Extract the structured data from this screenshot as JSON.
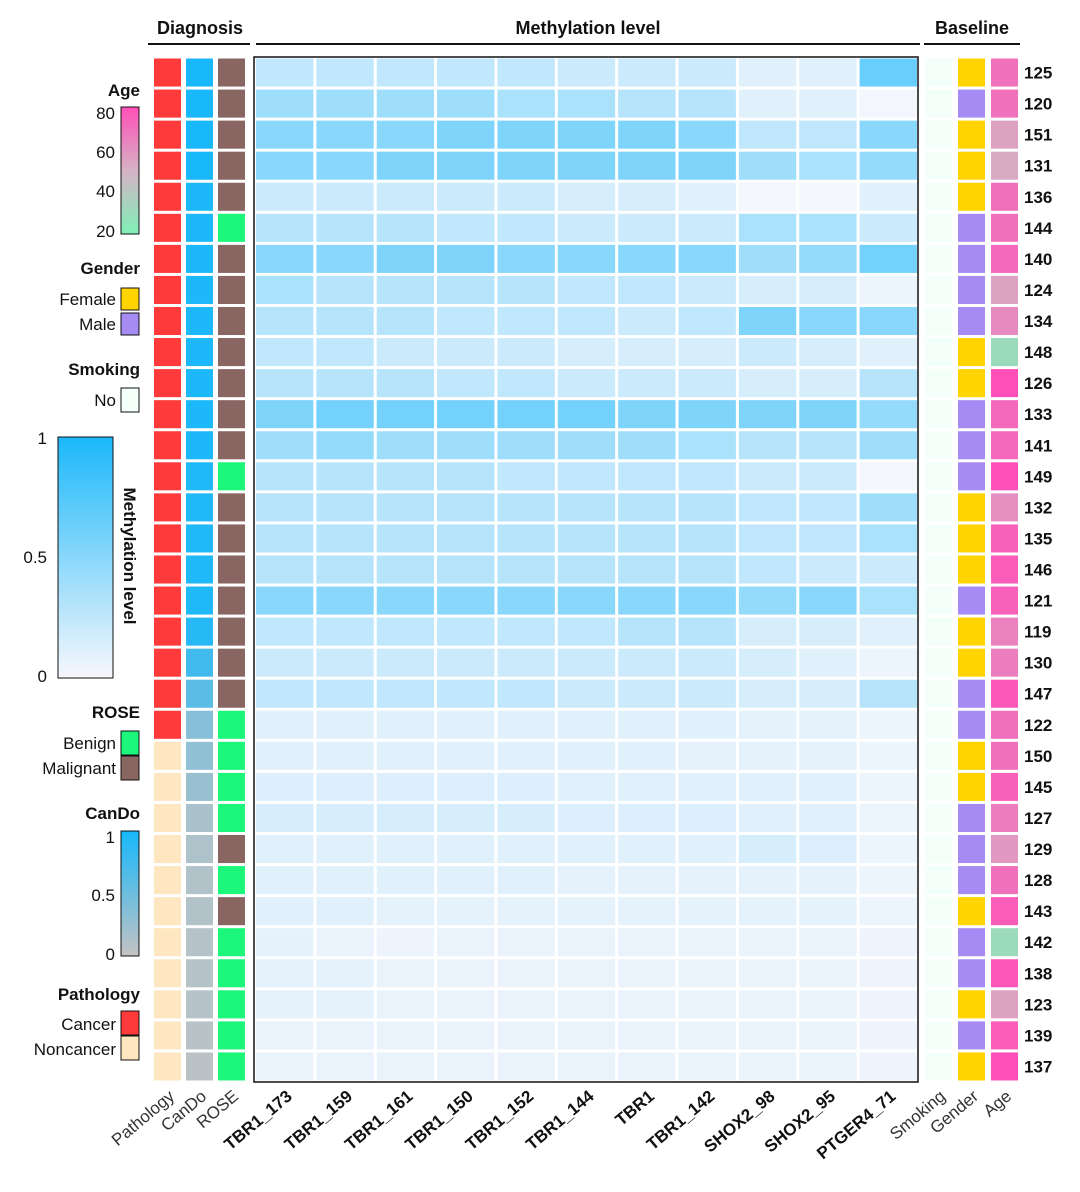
{
  "headers": {
    "diagnosis": "Diagnosis",
    "methylation": "Methylation level",
    "baseline": "Baseline"
  },
  "legend": {
    "age": {
      "title": "Age",
      "ticks": [
        "80",
        "60",
        "40",
        "20"
      ],
      "colors": [
        "#ff4fb8",
        "#d6b2c4",
        "#7ef0b8"
      ]
    },
    "gender": {
      "title": "Gender",
      "items": [
        {
          "label": "Female",
          "color": "#ffd400"
        },
        {
          "label": "Male",
          "color": "#a78bf5"
        }
      ]
    },
    "smoking": {
      "title": "Smoking",
      "items": [
        {
          "label": "No",
          "color": "#f3fff9"
        }
      ]
    },
    "methylation": {
      "title": "Methylation level",
      "ticks": [
        "1",
        "0.5",
        "0"
      ],
      "colors": [
        "#1bb8fa",
        "#f7f7fc"
      ]
    },
    "rose": {
      "title": "ROSE",
      "items": [
        {
          "label": "Benign",
          "color": "#1cf77b"
        },
        {
          "label": "Malignant",
          "color": "#8a6663"
        }
      ]
    },
    "cando": {
      "title": "CanDo",
      "ticks": [
        "1",
        "0.5",
        "0"
      ],
      "colors": [
        "#16b8fb",
        "#c3c3c3"
      ]
    },
    "pathology": {
      "title": "Pathology",
      "items": [
        {
          "label": "Cancer",
          "color": "#ff3a3a"
        },
        {
          "label": "Noncancer",
          "color": "#fee7c0"
        }
      ]
    }
  },
  "chart_data": {
    "type": "heatmap",
    "diagnosis_columns": [
      "Pathology",
      "CanDo",
      "ROSE"
    ],
    "marker_columns": [
      "TBR1_173",
      "TBR1_159",
      "TBR1_161",
      "TBR1_150",
      "TBR1_152",
      "TBR1_144",
      "TBR1",
      "TBR1_142",
      "SHOX2_98",
      "SHOX2_95",
      "PTGER4_71"
    ],
    "baseline_columns": [
      "Age",
      "Gender",
      "Smoking"
    ],
    "rows": [
      "125",
      "120",
      "151",
      "131",
      "136",
      "144",
      "140",
      "124",
      "134",
      "148",
      "126",
      "133",
      "141",
      "149",
      "132",
      "135",
      "146",
      "121",
      "119",
      "130",
      "147",
      "122",
      "150",
      "145",
      "127",
      "129",
      "128",
      "143",
      "142",
      "138",
      "123",
      "139",
      "137"
    ],
    "pathology": [
      "Cancer",
      "Cancer",
      "Cancer",
      "Cancer",
      "Cancer",
      "Cancer",
      "Cancer",
      "Cancer",
      "Cancer",
      "Cancer",
      "Cancer",
      "Cancer",
      "Cancer",
      "Cancer",
      "Cancer",
      "Cancer",
      "Cancer",
      "Cancer",
      "Cancer",
      "Cancer",
      "Cancer",
      "Cancer",
      "Noncancer",
      "Noncancer",
      "Noncancer",
      "Noncancer",
      "Noncancer",
      "Noncancer",
      "Noncancer",
      "Noncancer",
      "Noncancer",
      "Noncancer",
      "Noncancer"
    ],
    "cando": [
      0.98,
      0.98,
      0.98,
      0.98,
      0.96,
      0.96,
      0.96,
      0.96,
      0.96,
      0.96,
      0.96,
      0.96,
      0.96,
      0.95,
      0.95,
      0.95,
      0.95,
      0.95,
      0.9,
      0.75,
      0.6,
      0.35,
      0.3,
      0.25,
      0.15,
      0.12,
      0.1,
      0.1,
      0.08,
      0.08,
      0.08,
      0.06,
      0.05
    ],
    "rose": [
      "Malignant",
      "Malignant",
      "Malignant",
      "Malignant",
      "Malignant",
      "Benign",
      "Malignant",
      "Malignant",
      "Malignant",
      "Malignant",
      "Malignant",
      "Malignant",
      "Malignant",
      "Benign",
      "Malignant",
      "Malignant",
      "Malignant",
      "Malignant",
      "Malignant",
      "Malignant",
      "Malignant",
      "Benign",
      "Benign",
      "Benign",
      "Benign",
      "Malignant",
      "Benign",
      "Malignant",
      "Benign",
      "Benign",
      "Benign",
      "Benign",
      "Benign"
    ],
    "age": [
      70,
      70,
      55,
      52,
      70,
      70,
      72,
      55,
      62,
      30,
      85,
      72,
      72,
      80,
      60,
      75,
      76,
      75,
      65,
      66,
      77,
      70,
      70,
      75,
      66,
      58,
      70,
      76,
      30,
      78,
      55,
      76,
      85
    ],
    "gender": [
      "Female",
      "Male",
      "Female",
      "Female",
      "Female",
      "Male",
      "Male",
      "Male",
      "Male",
      "Female",
      "Female",
      "Male",
      "Male",
      "Male",
      "Female",
      "Female",
      "Female",
      "Male",
      "Female",
      "Female",
      "Male",
      "Male",
      "Female",
      "Female",
      "Male",
      "Male",
      "Male",
      "Female",
      "Male",
      "Male",
      "Female",
      "Male",
      "Female"
    ],
    "smoking": [
      "No",
      "No",
      "No",
      "No",
      "No",
      "No",
      "No",
      "No",
      "No",
      "No",
      "No",
      "No",
      "No",
      "No",
      "No",
      "No",
      "No",
      "No",
      "No",
      "No",
      "No",
      "No",
      "No",
      "No",
      "No",
      "No",
      "No",
      "No",
      "No",
      "No",
      "No",
      "No",
      "No"
    ],
    "values": [
      [
        0.25,
        0.25,
        0.25,
        0.25,
        0.25,
        0.2,
        0.2,
        0.2,
        0.1,
        0.1,
        0.65
      ],
      [
        0.4,
        0.4,
        0.4,
        0.4,
        0.35,
        0.35,
        0.3,
        0.3,
        0.1,
        0.1,
        0.02
      ],
      [
        0.5,
        0.5,
        0.5,
        0.55,
        0.55,
        0.55,
        0.55,
        0.5,
        0.25,
        0.25,
        0.5
      ],
      [
        0.5,
        0.5,
        0.55,
        0.55,
        0.55,
        0.55,
        0.55,
        0.55,
        0.4,
        0.35,
        0.45
      ],
      [
        0.2,
        0.2,
        0.2,
        0.2,
        0.2,
        0.15,
        0.15,
        0.1,
        0.02,
        0.02,
        0.1
      ],
      [
        0.3,
        0.3,
        0.3,
        0.25,
        0.25,
        0.2,
        0.2,
        0.2,
        0.35,
        0.35,
        0.2
      ],
      [
        0.5,
        0.5,
        0.55,
        0.55,
        0.5,
        0.5,
        0.5,
        0.5,
        0.4,
        0.45,
        0.6
      ],
      [
        0.35,
        0.3,
        0.3,
        0.3,
        0.3,
        0.25,
        0.25,
        0.2,
        0.15,
        0.15,
        0.05
      ],
      [
        0.3,
        0.3,
        0.3,
        0.25,
        0.25,
        0.25,
        0.2,
        0.25,
        0.55,
        0.5,
        0.5
      ],
      [
        0.25,
        0.25,
        0.2,
        0.2,
        0.2,
        0.15,
        0.15,
        0.15,
        0.2,
        0.15,
        0.1
      ],
      [
        0.3,
        0.3,
        0.3,
        0.25,
        0.25,
        0.2,
        0.2,
        0.2,
        0.15,
        0.15,
        0.3
      ],
      [
        0.55,
        0.6,
        0.6,
        0.6,
        0.6,
        0.6,
        0.55,
        0.55,
        0.55,
        0.55,
        0.45
      ],
      [
        0.4,
        0.45,
        0.4,
        0.4,
        0.4,
        0.4,
        0.4,
        0.35,
        0.3,
        0.3,
        0.4
      ],
      [
        0.3,
        0.3,
        0.3,
        0.3,
        0.25,
        0.25,
        0.25,
        0.25,
        0.2,
        0.2,
        0.02
      ],
      [
        0.3,
        0.3,
        0.3,
        0.3,
        0.3,
        0.3,
        0.3,
        0.3,
        0.25,
        0.25,
        0.4
      ],
      [
        0.3,
        0.3,
        0.3,
        0.3,
        0.3,
        0.3,
        0.3,
        0.3,
        0.25,
        0.25,
        0.35
      ],
      [
        0.3,
        0.3,
        0.3,
        0.3,
        0.3,
        0.3,
        0.3,
        0.3,
        0.25,
        0.2,
        0.2
      ],
      [
        0.5,
        0.5,
        0.5,
        0.5,
        0.5,
        0.5,
        0.5,
        0.5,
        0.45,
        0.5,
        0.35
      ],
      [
        0.25,
        0.25,
        0.25,
        0.25,
        0.25,
        0.25,
        0.3,
        0.3,
        0.15,
        0.15,
        0.1
      ],
      [
        0.2,
        0.2,
        0.2,
        0.2,
        0.2,
        0.2,
        0.2,
        0.2,
        0.15,
        0.1,
        0.05
      ],
      [
        0.25,
        0.25,
        0.25,
        0.25,
        0.25,
        0.2,
        0.2,
        0.2,
        0.15,
        0.15,
        0.3
      ],
      [
        0.1,
        0.1,
        0.1,
        0.1,
        0.1,
        0.1,
        0.1,
        0.1,
        0.08,
        0.08,
        0.05
      ],
      [
        0.1,
        0.1,
        0.1,
        0.1,
        0.1,
        0.1,
        0.1,
        0.08,
        0.08,
        0.08,
        0.05
      ],
      [
        0.12,
        0.12,
        0.12,
        0.12,
        0.12,
        0.1,
        0.1,
        0.1,
        0.1,
        0.1,
        0.05
      ],
      [
        0.15,
        0.15,
        0.15,
        0.15,
        0.15,
        0.12,
        0.12,
        0.12,
        0.1,
        0.1,
        0.05
      ],
      [
        0.1,
        0.1,
        0.1,
        0.1,
        0.1,
        0.1,
        0.1,
        0.1,
        0.15,
        0.12,
        0.05
      ],
      [
        0.1,
        0.1,
        0.1,
        0.1,
        0.1,
        0.08,
        0.08,
        0.08,
        0.08,
        0.08,
        0.05
      ],
      [
        0.1,
        0.1,
        0.08,
        0.08,
        0.08,
        0.08,
        0.08,
        0.08,
        0.08,
        0.08,
        0.05
      ],
      [
        0.08,
        0.06,
        0.04,
        0.06,
        0.06,
        0.06,
        0.06,
        0.06,
        0.06,
        0.06,
        0.04
      ],
      [
        0.08,
        0.08,
        0.06,
        0.06,
        0.06,
        0.06,
        0.06,
        0.06,
        0.06,
        0.06,
        0.04
      ],
      [
        0.08,
        0.08,
        0.06,
        0.06,
        0.06,
        0.06,
        0.06,
        0.06,
        0.06,
        0.06,
        0.04
      ],
      [
        0.06,
        0.06,
        0.06,
        0.06,
        0.06,
        0.06,
        0.06,
        0.06,
        0.06,
        0.06,
        0.04
      ],
      [
        0.06,
        0.06,
        0.06,
        0.06,
        0.06,
        0.06,
        0.06,
        0.06,
        0.06,
        0.06,
        0.04
      ]
    ]
  }
}
